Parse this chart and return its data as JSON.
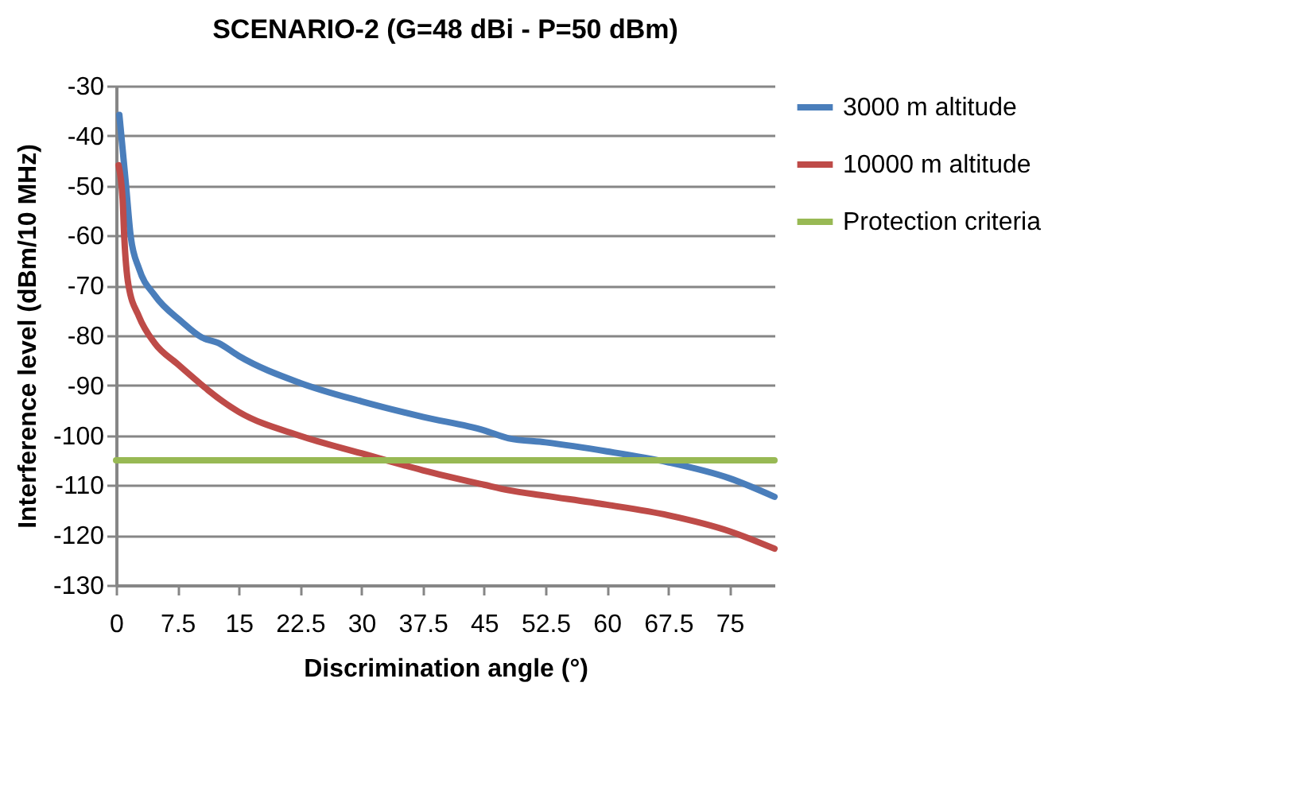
{
  "chart_data": {
    "type": "line",
    "title": "SCENARIO-2 (G=48 dBi - P=50 dBm)",
    "xlabel": "Discrimination angle (°)",
    "ylabel": "Interference level (dBm/10 MHz)",
    "xlim": [
      0,
      80.5
    ],
    "xticks": [
      0,
      7.5,
      15,
      22.5,
      30,
      37.5,
      45,
      52.5,
      60,
      67.5,
      75
    ],
    "ylim": [
      -130,
      -30
    ],
    "yticks": [
      -130,
      -120,
      -110,
      -100,
      -90,
      -80,
      -70,
      -60,
      -50,
      -40,
      -30
    ],
    "grid": "y",
    "legend": "right",
    "line_style": "solid",
    "marker": "none",
    "series": [
      {
        "name": "3000 m altitude",
        "color": "#4a7ebb",
        "x": [
          0.4,
          1.2,
          1.8,
          2.8,
          4.7,
          8,
          10.5,
          12.5,
          15,
          22.5,
          30,
          37.5,
          45,
          48,
          52.5,
          60,
          67.5,
          75,
          80.5
        ],
        "values": [
          -35.8,
          -49.6,
          -60.3,
          -66.6,
          -71.9,
          -77.2,
          -80.4,
          -81.5,
          -84.1,
          -89.5,
          -93.2,
          -96.3,
          -99,
          -100.6,
          -101.4,
          -103.2,
          -105.4,
          -108.6,
          -112.3
        ]
      },
      {
        "name": "10000 m altitude",
        "color": "#be4b48",
        "x": [
          0.3,
          0.8,
          1,
          1.5,
          2.8,
          4.7,
          7.5,
          15,
          22.5,
          30,
          37.5,
          45,
          48,
          52.5,
          60,
          67.5,
          75,
          80.5
        ],
        "values": [
          -45.9,
          -52.8,
          -60.3,
          -69.8,
          -76.2,
          -81.5,
          -85.7,
          -95.3,
          -100.1,
          -103.6,
          -107,
          -109.9,
          -111,
          -112.1,
          -113.9,
          -116,
          -119.2,
          -122.7
        ]
      },
      {
        "name": "Protection criteria",
        "color": "#98b954",
        "x": [
          0,
          80.5
        ],
        "values": [
          -105,
          -105
        ]
      }
    ]
  }
}
